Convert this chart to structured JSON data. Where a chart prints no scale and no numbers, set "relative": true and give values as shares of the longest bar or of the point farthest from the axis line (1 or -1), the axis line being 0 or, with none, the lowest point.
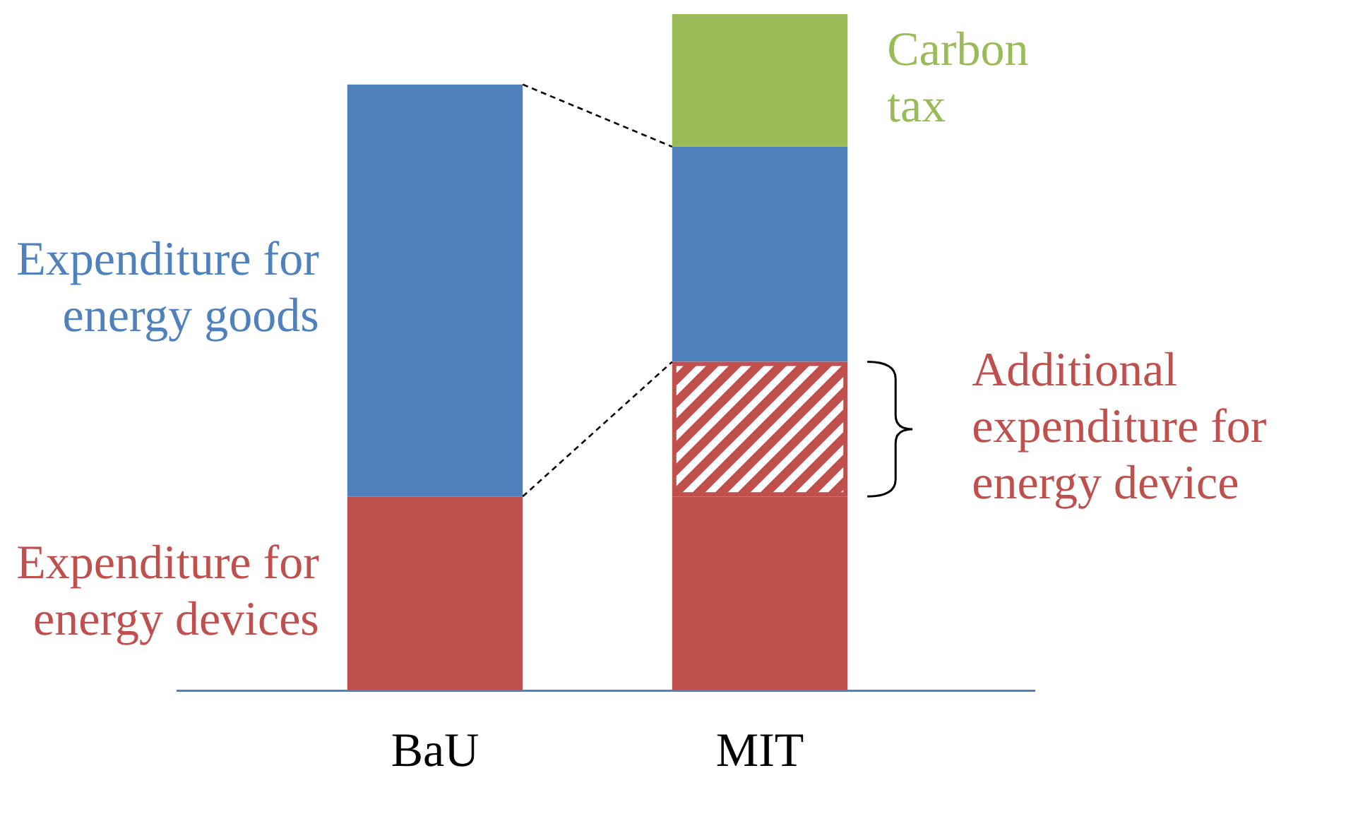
{
  "chart_data": {
    "type": "bar",
    "stacked": true,
    "relative": true,
    "categories": [
      "BaU",
      "MIT"
    ],
    "series": [
      {
        "name": "Expenditure for energy devices",
        "color": "#c0504d",
        "values": [
          0.287,
          0.287
        ]
      },
      {
        "name": "Additional expenditure for energy device",
        "color": "#c0504d",
        "values": [
          null,
          0.199
        ]
      },
      {
        "name": "Expenditure for energy goods",
        "color": "#4f81bd",
        "values": [
          0.609,
          0.318
        ]
      },
      {
        "name": "Carbon tax",
        "color": "#9bbb59",
        "values": [
          null,
          0.196
        ]
      }
    ],
    "legend": false,
    "grid": false
  }
}
